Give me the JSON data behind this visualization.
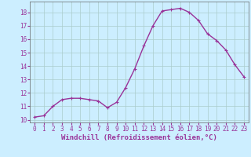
{
  "x": [
    0,
    1,
    2,
    3,
    4,
    5,
    6,
    7,
    8,
    9,
    10,
    11,
    12,
    13,
    14,
    15,
    16,
    17,
    18,
    19,
    20,
    21,
    22,
    23
  ],
  "y": [
    10.2,
    10.3,
    11.0,
    11.5,
    11.6,
    11.6,
    11.5,
    11.4,
    10.9,
    11.3,
    12.4,
    13.8,
    15.5,
    17.0,
    18.1,
    18.2,
    18.3,
    18.0,
    17.4,
    16.4,
    15.9,
    15.2,
    14.1,
    13.2
  ],
  "line_color": "#993399",
  "marker": "+",
  "marker_size": 3,
  "bg_color": "#cceeff",
  "grid_color": "#aacccc",
  "xlabel": "Windchill (Refroidissement éolien,°C)",
  "xlim": [
    -0.5,
    23.5
  ],
  "ylim": [
    9.8,
    18.8
  ],
  "yticks": [
    10,
    11,
    12,
    13,
    14,
    15,
    16,
    17,
    18
  ],
  "xticks": [
    0,
    1,
    2,
    3,
    4,
    5,
    6,
    7,
    8,
    9,
    10,
    11,
    12,
    13,
    14,
    15,
    16,
    17,
    18,
    19,
    20,
    21,
    22,
    23
  ],
  "tick_label_fontsize": 5.5,
  "xlabel_fontsize": 6.5,
  "line_width": 1.0,
  "label_color": "#993399"
}
